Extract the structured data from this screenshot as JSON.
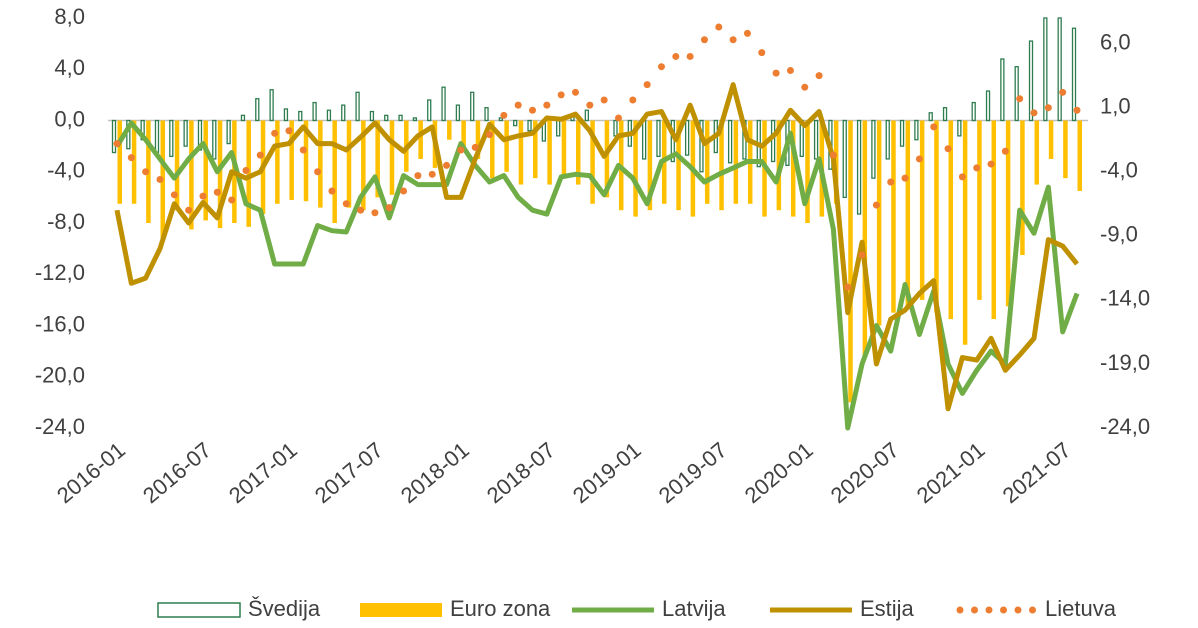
{
  "chart_data": {
    "type": "combo",
    "categories": [
      "2016-01",
      null,
      null,
      null,
      null,
      null,
      "2016-07",
      null,
      null,
      null,
      null,
      null,
      "2017-01",
      null,
      null,
      null,
      null,
      null,
      "2017-07",
      null,
      null,
      null,
      null,
      null,
      "2018-01",
      null,
      null,
      null,
      null,
      null,
      "2018-07",
      null,
      null,
      null,
      null,
      null,
      "2019-01",
      null,
      null,
      null,
      null,
      null,
      "2019-07",
      null,
      null,
      null,
      null,
      null,
      "2020-01",
      null,
      null,
      null,
      null,
      null,
      "2020-07",
      null,
      null,
      null,
      null,
      null,
      "2021-01",
      null,
      null,
      null,
      null,
      null,
      "2021-07",
      null
    ],
    "series": [
      {
        "name": "Švedija",
        "kind": "bar",
        "color": "#2e7d4f",
        "values": [
          -2.5,
          -2.2,
          -1.5,
          -2.5,
          -2.8,
          -2,
          -2.3,
          -3,
          -1.8,
          0.4,
          1.7,
          2.4,
          0.9,
          0.7,
          1.4,
          0.8,
          1.2,
          2.2,
          0.7,
          0.4,
          0.4,
          0.2,
          1.6,
          2.6,
          1.2,
          2.2,
          1,
          0.2,
          -0.4,
          -0.8,
          -1.6,
          -1.2,
          0.3,
          0.8,
          0,
          -1.2,
          -2,
          -3,
          -2.8,
          -3.2,
          -2.7,
          -4,
          -2.5,
          -3.3,
          -3,
          -3.6,
          -3.2,
          -3.5,
          -2.8,
          -3,
          -3.8,
          -6,
          -7.3,
          -4.5,
          -3,
          -2,
          -1.5,
          0.6,
          1,
          -1.2,
          1.4,
          2.3,
          4.8,
          4.2,
          6.2,
          8,
          8,
          7.2
        ]
      },
      {
        "name": "Euro zona",
        "kind": "bar",
        "color": "#ffc000",
        "values": [
          -6.5,
          -6.5,
          -8,
          -9.2,
          -7,
          -8.5,
          -7.8,
          -8.4,
          -8,
          -8.3,
          -7.3,
          -6.5,
          -6.2,
          -6.3,
          -6.8,
          -8,
          -6.8,
          -7,
          -6,
          -5.8,
          -4,
          -3,
          -3.7,
          -1.5,
          -2,
          -3,
          -4.5,
          -4,
          -5,
          -4.5,
          -5,
          -4.2,
          -5,
          -6.5,
          -6,
          -7,
          -7.5,
          -7,
          -6.5,
          -7,
          -7.5,
          -6.5,
          -7,
          -6.5,
          -6.5,
          -7.5,
          -7,
          -7.5,
          -8,
          -7.5,
          -6.5,
          -22,
          -18.5,
          -16,
          -15,
          -14.5,
          -14,
          -15,
          -15.5,
          -17.5,
          -14,
          -15.5,
          -14.5,
          -10.5,
          -5,
          -3,
          -4.5,
          -5.5
        ]
      },
      {
        "name": "Latvija",
        "kind": "line",
        "color": "#70ad47",
        "values": [
          -2,
          -0.2,
          -1.5,
          -3,
          -4.5,
          -3,
          -1.8,
          -4,
          -2.5,
          -6.5,
          -7,
          -11.2,
          -11.2,
          -11.2,
          -8.2,
          -8.6,
          -8.7,
          -6,
          -4.4,
          -7.6,
          -4.3,
          -5,
          -5,
          -5,
          -1.8,
          -3.5,
          -4.8,
          -4.3,
          -6,
          -7,
          -7.3,
          -4.4,
          -4.2,
          -4.3,
          -5.8,
          -3.5,
          -4.5,
          -6.5,
          -3.2,
          -2.6,
          -3.6,
          -4.8,
          -4.2,
          -3.7,
          -3.2,
          -3.2,
          -4.8,
          -1,
          -6.5,
          -3,
          -8.5,
          -24,
          -19,
          -16,
          -18,
          -12.8,
          -16.7,
          -13.3,
          -19,
          -21.3,
          -19.5,
          -18,
          -19,
          -7,
          -8.8,
          -5.2,
          -16.5,
          -13.5
        ]
      },
      {
        "name": "Estija",
        "kind": "line",
        "color": "#bf9000",
        "values": [
          -7,
          -12.7,
          -12.3,
          -10,
          -6.5,
          -8,
          -6.4,
          -7.6,
          -4,
          -4.5,
          -4,
          -2,
          -1.8,
          -0.5,
          -1.8,
          -1.8,
          -2.3,
          -1.3,
          -0.2,
          -1.5,
          -2.4,
          -1.2,
          -0.5,
          -6,
          -6,
          -3,
          -0.3,
          -1.5,
          -1.2,
          -1,
          0.2,
          0.1,
          0.5,
          -0.8,
          -2.8,
          -1.2,
          -1,
          0.5,
          0.7,
          -1.5,
          1.2,
          -1.8,
          -1,
          2.8,
          -1.5,
          -2,
          -1,
          0.8,
          -0.4,
          0.7,
          -3,
          -15,
          -9.5,
          -19,
          -15.5,
          -14.8,
          -13.5,
          -12.5,
          -22.5,
          -18.5,
          -18.7,
          -17,
          -19.5,
          -18.3,
          -17,
          -9.3,
          -9.8,
          -11.2
        ]
      },
      {
        "name": "Lietuva",
        "kind": "dots",
        "axis": "y2",
        "color": "#ed7d31",
        "values": [
          -1.8,
          -2.9,
          -4,
          -4.6,
          -5.8,
          -7,
          -5.9,
          -5.6,
          -6.2,
          -3.9,
          -2.7,
          -1,
          -0.8,
          -2.3,
          -4,
          -5.5,
          -6.5,
          -7,
          -7.2,
          -6.8,
          -5.5,
          -4.3,
          -4.2,
          -3.5,
          -2.3,
          -2.1,
          -1.1,
          0.4,
          1.2,
          0.8,
          1.2,
          2,
          2.2,
          1.2,
          1.6,
          0.2,
          1.6,
          2.8,
          4.2,
          5,
          5,
          6.3,
          7.3,
          6.3,
          6.8,
          5.3,
          3.7,
          3.9,
          2.6,
          3.5,
          -2.7,
          -13,
          -10.5,
          -6.6,
          -4.8,
          -4.5,
          -3,
          -0.5,
          -2.2,
          -4.4,
          -3.7,
          -3.4,
          -2.4,
          1.7,
          0.6,
          1,
          2.2,
          0.8
        ]
      }
    ],
    "ylim": [
      -24,
      8
    ],
    "yticks": [
      {
        "value": 8,
        "label": "8,0"
      },
      {
        "value": 4,
        "label": "4,0"
      },
      {
        "value": 0,
        "label": "0,0"
      },
      {
        "value": -4,
        "label": "-4,0"
      },
      {
        "value": -8,
        "label": "-8,0"
      },
      {
        "value": -12,
        "label": "-12,0"
      },
      {
        "value": -16,
        "label": "-16,0"
      },
      {
        "value": -20,
        "label": "-20,0"
      },
      {
        "value": -24,
        "label": "-24,0"
      }
    ],
    "y2lim": [
      -24,
      8
    ],
    "y2ticks": [
      {
        "value": 6,
        "label": "6,0"
      },
      {
        "value": 1,
        "label": "1,0"
      },
      {
        "value": -4,
        "label": "-4,0"
      },
      {
        "value": -9,
        "label": "-9,0"
      },
      {
        "value": -14,
        "label": "-14,0"
      },
      {
        "value": -19,
        "label": "-19,0"
      },
      {
        "value": -24,
        "label": "-24,0"
      }
    ],
    "legend": "bottom"
  }
}
